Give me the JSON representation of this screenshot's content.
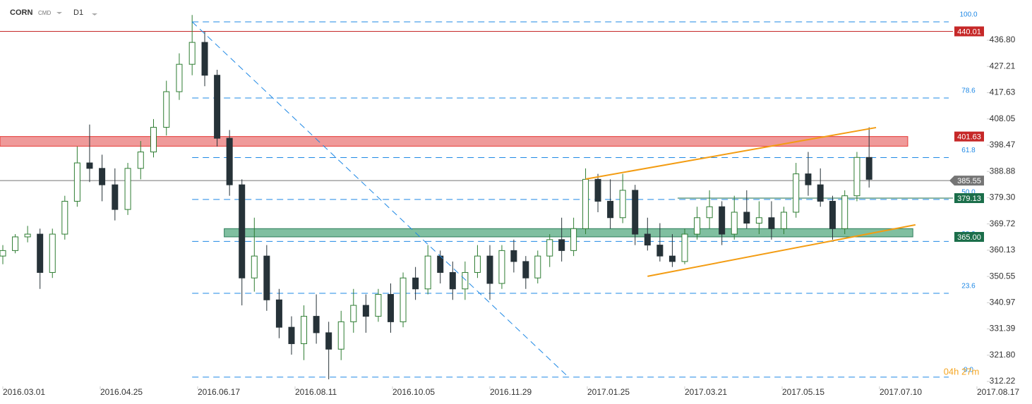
{
  "chart_data": {
    "type": "candlestick",
    "symbol": "CORN",
    "market": "CMD",
    "interval": "D1",
    "x": [
      "2016-03-01",
      "2016-03-08",
      "2016-03-15",
      "2016-03-22",
      "2016-03-29",
      "2016-04-05",
      "2016-04-12",
      "2016-04-19",
      "2016-04-26",
      "2016-05-03",
      "2016-05-10",
      "2016-05-17",
      "2016-05-24",
      "2016-05-31",
      "2016-06-07",
      "2016-06-14",
      "2016-06-21",
      "2016-06-28",
      "2016-07-05",
      "2016-07-12",
      "2016-07-19",
      "2016-07-26",
      "2016-08-02",
      "2016-08-09",
      "2016-08-16",
      "2016-08-23",
      "2016-08-30",
      "2016-09-06",
      "2016-09-13",
      "2016-09-20",
      "2016-09-27",
      "2016-10-04",
      "2016-10-11",
      "2016-10-18",
      "2016-10-25",
      "2016-11-01",
      "2016-11-08",
      "2016-11-15",
      "2016-11-22",
      "2016-11-29",
      "2016-12-06",
      "2016-12-13",
      "2016-12-20",
      "2016-12-27",
      "2017-01-03",
      "2017-01-10",
      "2017-01-17",
      "2017-01-24",
      "2017-01-31",
      "2017-02-07",
      "2017-02-14",
      "2017-02-21",
      "2017-02-28",
      "2017-03-07",
      "2017-03-14",
      "2017-03-21",
      "2017-03-28",
      "2017-04-04",
      "2017-04-11",
      "2017-04-18",
      "2017-04-25",
      "2017-05-02",
      "2017-05-09",
      "2017-05-16",
      "2017-05-23",
      "2017-05-30",
      "2017-06-06",
      "2017-06-13",
      "2017-06-20",
      "2017-06-27",
      "2017-07-04"
    ],
    "candles": [
      [
        358,
        362,
        355,
        360
      ],
      [
        360,
        366,
        359,
        365
      ],
      [
        365,
        369,
        363,
        366
      ],
      [
        366,
        368,
        346,
        352
      ],
      [
        352,
        368,
        350,
        366
      ],
      [
        366,
        380,
        364,
        378
      ],
      [
        378,
        398,
        376,
        392
      ],
      [
        392,
        406,
        385,
        390
      ],
      [
        390,
        395,
        378,
        384
      ],
      [
        384,
        390,
        371,
        375
      ],
      [
        375,
        392,
        373,
        390
      ],
      [
        390,
        400,
        386,
        396
      ],
      [
        396,
        408,
        394,
        405
      ],
      [
        405,
        422,
        402,
        418
      ],
      [
        418,
        432,
        415,
        428
      ],
      [
        428,
        446,
        424,
        436
      ],
      [
        436,
        440,
        420,
        424
      ],
      [
        424,
        426,
        398,
        401
      ],
      [
        401,
        404,
        380,
        384
      ],
      [
        384,
        386,
        340,
        350
      ],
      [
        350,
        372,
        345,
        358
      ],
      [
        358,
        362,
        338,
        342
      ],
      [
        342,
        346,
        328,
        332
      ],
      [
        332,
        336,
        322,
        326
      ],
      [
        326,
        340,
        320,
        336
      ],
      [
        336,
        344,
        326,
        330
      ],
      [
        330,
        334,
        313,
        324
      ],
      [
        324,
        338,
        320,
        334
      ],
      [
        334,
        346,
        330,
        340
      ],
      [
        340,
        344,
        330,
        336
      ],
      [
        336,
        346,
        334,
        344
      ],
      [
        344,
        348,
        330,
        334
      ],
      [
        334,
        352,
        332,
        350
      ],
      [
        350,
        354,
        342,
        346
      ],
      [
        346,
        362,
        344,
        358
      ],
      [
        358,
        360,
        348,
        352
      ],
      [
        352,
        356,
        342,
        346
      ],
      [
        346,
        356,
        342,
        352
      ],
      [
        352,
        362,
        350,
        358
      ],
      [
        358,
        362,
        342,
        348
      ],
      [
        348,
        362,
        346,
        360
      ],
      [
        360,
        364,
        352,
        356
      ],
      [
        356,
        358,
        346,
        350
      ],
      [
        350,
        360,
        348,
        358
      ],
      [
        358,
        366,
        354,
        364
      ],
      [
        364,
        372,
        356,
        360
      ],
      [
        360,
        372,
        358,
        368
      ],
      [
        368,
        390,
        366,
        386
      ],
      [
        386,
        388,
        374,
        378
      ],
      [
        378,
        386,
        368,
        372
      ],
      [
        372,
        388,
        370,
        382
      ],
      [
        382,
        384,
        362,
        366
      ],
      [
        366,
        372,
        360,
        362
      ],
      [
        362,
        370,
        356,
        358
      ],
      [
        358,
        366,
        354,
        356
      ],
      [
        356,
        368,
        355,
        366
      ],
      [
        366,
        376,
        364,
        372
      ],
      [
        372,
        382,
        368,
        376
      ],
      [
        376,
        378,
        362,
        366
      ],
      [
        366,
        380,
        364,
        374
      ],
      [
        374,
        382,
        368,
        370
      ],
      [
        370,
        378,
        366,
        372
      ],
      [
        372,
        378,
        364,
        368
      ],
      [
        368,
        376,
        366,
        374
      ],
      [
        374,
        392,
        372,
        388
      ],
      [
        388,
        396,
        380,
        384
      ],
      [
        384,
        390,
        376,
        378
      ],
      [
        378,
        380,
        364,
        368
      ],
      [
        368,
        382,
        366,
        380
      ],
      [
        380,
        396,
        378,
        394
      ],
      [
        394,
        405,
        383,
        386
      ]
    ],
    "up_color": "#2e7d32",
    "down_color": "#263238",
    "xlim": [
      "2016-02-29",
      "2017-09-07"
    ],
    "xticks": [
      {
        "value": "2016-03-01",
        "label": "2016.03.01"
      },
      {
        "value": "2016-04-25",
        "label": "2016.04.25"
      },
      {
        "value": "2016-06-17",
        "label": "2016.06.17"
      },
      {
        "value": "2016-08-11",
        "label": "2016.08.11"
      },
      {
        "value": "2016-10-05",
        "label": "2016.10.05"
      },
      {
        "value": "2016-11-29",
        "label": "2016.11.29"
      },
      {
        "value": "2017-01-25",
        "label": "2017.01.25"
      },
      {
        "value": "2017-03-21",
        "label": "2017.03.21"
      },
      {
        "value": "2017-05-15",
        "label": "2017.05.15"
      },
      {
        "value": "2017-07-10",
        "label": "2017.07.10"
      },
      {
        "value": "2017-08-17",
        "label": "2017.08.17"
      }
    ],
    "ylim": [
      309.39,
      451.47
    ],
    "yticks": [
      {
        "value": 312.22,
        "label": "312.22"
      },
      {
        "value": 321.8,
        "label": "321.80"
      },
      {
        "value": 331.39,
        "label": "331.39"
      },
      {
        "value": 340.97,
        "label": "340.97"
      },
      {
        "value": 350.55,
        "label": "350.55"
      },
      {
        "value": 360.13,
        "label": "360.13"
      },
      {
        "value": 369.72,
        "label": "369.72"
      },
      {
        "value": 379.3,
        "label": "379.30"
      },
      {
        "value": 388.88,
        "label": "388.88"
      },
      {
        "value": 398.47,
        "label": "398.47"
      },
      {
        "value": 408.05,
        "label": "408.05"
      },
      {
        "value": 417.63,
        "label": "417.63"
      },
      {
        "value": 427.21,
        "label": "427.21"
      },
      {
        "value": 436.8,
        "label": "436.80"
      }
    ],
    "fibonacci": {
      "from": "2016-06-14",
      "to": "2017-08-06",
      "color": "#1e88e5",
      "levels": [
        {
          "value": 443.5,
          "label": "100.0"
        },
        {
          "value": 415.7,
          "label": "78.6"
        },
        {
          "value": 393.95,
          "label": "61.8"
        },
        {
          "value": 378.65,
          "label": "50.0"
        },
        {
          "value": 363.35,
          "label": "38.2"
        },
        {
          "value": 344.4,
          "label": "23.6"
        },
        {
          "value": 313.8,
          "label": "0.0"
        }
      ]
    },
    "trendlines": [
      {
        "color": "#1e88e5",
        "dashed": true,
        "x": [
          "2016-06-14",
          "2017-01-14"
        ],
        "y": [
          443.5,
          313.8
        ]
      },
      {
        "color": "#f39c12",
        "dashed": false,
        "x": [
          "2017-01-24",
          "2017-07-08"
        ],
        "y": [
          386.1,
          404.9
        ]
      },
      {
        "color": "#f39c12",
        "dashed": false,
        "x": [
          "2017-02-28",
          "2017-07-24"
        ],
        "y": [
          350.6,
          369.4
        ]
      }
    ],
    "zones": [
      {
        "from": 398.1,
        "to": 401.63,
        "x": [
          "2016-02-29",
          "2017-07-21"
        ],
        "color": "#ef9a9a",
        "border": "#e53935"
      },
      {
        "from": 365.0,
        "to": 368.0,
        "x": [
          "2016-07-02",
          "2017-07-23"
        ],
        "color": "#80bfa0",
        "border": "#2e7d5b"
      }
    ],
    "price_tags": [
      {
        "value": 440.01,
        "label": "440.01",
        "color": "#c62828",
        "line_from": "2016-02-29"
      },
      {
        "value": 401.63,
        "label": "401.63",
        "color": "#c62828",
        "line_from": null
      },
      {
        "value": 385.55,
        "label": "385.55",
        "color": "#757575",
        "line_from": "2016-02-29"
      },
      {
        "value": 379.13,
        "label": "379.13",
        "color": "#1b6e4a",
        "line_from": "2017-03-17"
      },
      {
        "value": 365.0,
        "label": "365.00",
        "color": "#1b6e4a",
        "line_from": null
      }
    ],
    "timer": "04h 27m"
  }
}
